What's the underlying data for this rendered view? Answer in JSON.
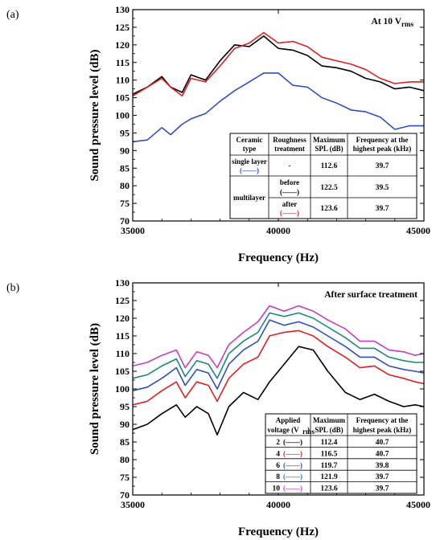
{
  "panels": [
    {
      "label": "(a)",
      "annotation": "At 10 V",
      "annotation_sub": "rms",
      "table": {
        "headers": [
          [
            "Ceramic",
            "type"
          ],
          [
            "Roughness",
            "treatment"
          ],
          [
            "Maximum",
            "SPL (dB)"
          ],
          [
            "Frequency at the",
            "highest peak (kHz)"
          ]
        ],
        "rows": [
          {
            "type": "single layer",
            "treatment": "-",
            "legend": "(——)",
            "spl": "112.6",
            "freq": "39.7"
          },
          {
            "type": "multilayer",
            "treatment": "before",
            "legend": "(——)",
            "spl": "122.5",
            "freq": "39.5"
          },
          {
            "type": "",
            "treatment": "after",
            "legend": "(——)",
            "spl": "123.6",
            "freq": "39.7"
          }
        ]
      }
    },
    {
      "label": "(b)",
      "annotation": "After surface treatment",
      "table": {
        "headers": [
          [
            "Applied",
            "voltage (V"
          ],
          [
            "Maximum",
            "SPL (dB)"
          ],
          [
            "Frequency at the",
            "highest peak (kHz)"
          ]
        ],
        "header_sub": "rms",
        "header_close": ")",
        "rows": [
          {
            "voltage": "2",
            "legend": "(——)",
            "spl": "112.4",
            "freq": "40.7"
          },
          {
            "voltage": "4",
            "legend": "(——)",
            "spl": "116.5",
            "freq": "40.7"
          },
          {
            "voltage": "6",
            "legend": "(——)",
            "spl": "119.7",
            "freq": "39.8"
          },
          {
            "voltage": "8",
            "legend": "(——)",
            "spl": "121.9",
            "freq": "39.7"
          },
          {
            "voltage": "10",
            "legend": "(——)",
            "spl": "123.6",
            "freq": "39.7"
          }
        ]
      }
    }
  ],
  "chart_data": [
    {
      "type": "line",
      "xlabel": "Frequency (Hz)",
      "ylabel": "Sound pressure level (dB)",
      "xlim": [
        35000,
        45000
      ],
      "ylim": [
        70,
        130
      ],
      "xticks": [
        "35000",
        "40000",
        "45000"
      ],
      "yticks": [
        "70",
        "75",
        "80",
        "85",
        "90",
        "95",
        "100",
        "105",
        "110",
        "115",
        "120",
        "125",
        "130"
      ],
      "x": [
        35000,
        35500,
        36000,
        36300,
        36700,
        37000,
        37500,
        38000,
        38500,
        39000,
        39500,
        40000,
        40500,
        41000,
        41500,
        42000,
        42500,
        43000,
        43500,
        44000,
        44500,
        45000
      ],
      "series": [
        {
          "color": "#2f4fbf",
          "values": [
            92.5,
            93,
            96.5,
            94.5,
            97.5,
            99,
            100.5,
            104,
            107,
            109.5,
            112,
            112,
            108.5,
            108,
            105,
            103.5,
            101.5,
            101,
            99.5,
            96,
            97,
            97
          ]
        },
        {
          "color": "#000000",
          "values": [
            106,
            108,
            111,
            108,
            106.5,
            111.5,
            110,
            115.5,
            120,
            119.5,
            122.5,
            119,
            118.5,
            117,
            114,
            113.5,
            112.5,
            110.5,
            109.5,
            107.5,
            108,
            107
          ]
        },
        {
          "color": "#e01f1f",
          "values": [
            105.5,
            108,
            110.5,
            108,
            105.5,
            110.5,
            109.5,
            114,
            119,
            120.5,
            123.5,
            120.5,
            121,
            119.5,
            116.5,
            115.5,
            114.5,
            113,
            110.5,
            109,
            109.5,
            109.5
          ]
        }
      ]
    },
    {
      "type": "line",
      "xlabel": "Frequency (Hz)",
      "ylabel": "Sound pressure level (dB)",
      "xlim": [
        35000,
        45000
      ],
      "ylim": [
        70,
        130
      ],
      "xticks": [
        "35000",
        "40000",
        "45000"
      ],
      "yticks": [
        "70",
        "75",
        "80",
        "85",
        "90",
        "95",
        "100",
        "105",
        "110",
        "115",
        "120",
        "125",
        "130"
      ],
      "x": [
        35000,
        35500,
        36000,
        36500,
        36800,
        37200,
        37600,
        37900,
        38300,
        38800,
        39300,
        39700,
        40200,
        40700,
        41200,
        41700,
        42300,
        42800,
        43300,
        43800,
        44300,
        44700,
        45000
      ],
      "series": [
        {
          "name": "2",
          "color": "#000000",
          "values": [
            88.5,
            90,
            93,
            95.5,
            92,
            95,
            93,
            87,
            95,
            99,
            97,
            102,
            107,
            112,
            111,
            105,
            99,
            97,
            98.5,
            96.5,
            95,
            95.5,
            95
          ]
        },
        {
          "name": "4",
          "color": "#e01f1f",
          "values": [
            95.5,
            96.5,
            99.5,
            102,
            97.5,
            102,
            101,
            96.5,
            103,
            107,
            109,
            115,
            116,
            116.5,
            115,
            112,
            109,
            106,
            106.5,
            104,
            103,
            102,
            101.5
          ]
        },
        {
          "name": "6",
          "color": "#2f4fbf",
          "values": [
            99.5,
            100.5,
            103,
            106,
            101,
            105.5,
            104.5,
            100,
            107,
            111,
            113.5,
            119.5,
            118,
            119,
            117.5,
            115,
            112,
            109,
            109,
            106.5,
            105.5,
            105,
            104.5
          ]
        },
        {
          "name": "8",
          "color": "#1b8a7a",
          "values": [
            103,
            104,
            106.5,
            108.5,
            103.5,
            108,
            107,
            103,
            110,
            113.5,
            116,
            121.5,
            120.5,
            121.5,
            120,
            117.5,
            114.5,
            111.5,
            111.5,
            109,
            108,
            107.5,
            107.5
          ]
        },
        {
          "name": "10",
          "color": "#c040c0",
          "values": [
            106.5,
            107.5,
            109.5,
            111,
            106,
            110.5,
            109.5,
            106,
            112.5,
            116,
            119,
            123.5,
            122,
            123.5,
            122,
            119.5,
            117,
            113.5,
            113.5,
            111,
            110.5,
            109.5,
            110
          ]
        }
      ]
    }
  ]
}
